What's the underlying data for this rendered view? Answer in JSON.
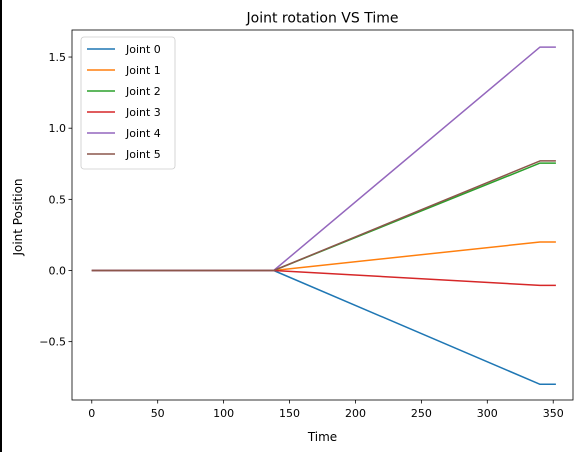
{
  "chart_data": {
    "type": "line",
    "title": "Joint rotation VS Time",
    "xlabel": "Time",
    "ylabel": "Joint Position",
    "xlim": [
      -15,
      365
    ],
    "ylim": [
      -0.91,
      1.69
    ],
    "xticks": [
      0,
      50,
      100,
      150,
      200,
      250,
      300,
      350
    ],
    "yticks": [
      -0.5,
      0.0,
      0.5,
      1.0,
      1.5
    ],
    "xtick_labels": [
      "0",
      "50",
      "100",
      "150",
      "200",
      "250",
      "300",
      "350"
    ],
    "ytick_labels": [
      "−0.5",
      "0.0",
      "0.5",
      "1.0",
      "1.5"
    ],
    "grid": false,
    "legend_position": "top-left",
    "series": [
      {
        "name": "Joint 0",
        "color": "#1f77b4",
        "x": [
          0,
          138,
          340,
          352
        ],
        "y": [
          0.0,
          0.0,
          -0.8,
          -0.8
        ]
      },
      {
        "name": "Joint 1",
        "color": "#ff7f0e",
        "x": [
          0,
          138,
          340,
          352
        ],
        "y": [
          0.0,
          0.0,
          0.2,
          0.2
        ]
      },
      {
        "name": "Joint 2",
        "color": "#2ca02c",
        "x": [
          0,
          138,
          340,
          352
        ],
        "y": [
          0.0,
          0.0,
          0.755,
          0.755
        ]
      },
      {
        "name": "Joint 3",
        "color": "#d62728",
        "x": [
          0,
          138,
          340,
          352
        ],
        "y": [
          0.0,
          0.0,
          -0.105,
          -0.105
        ]
      },
      {
        "name": "Joint 4",
        "color": "#9467bd",
        "x": [
          0,
          138,
          340,
          352
        ],
        "y": [
          0.0,
          0.0,
          1.57,
          1.57
        ]
      },
      {
        "name": "Joint 5",
        "color": "#8c564b",
        "x": [
          0,
          138,
          340,
          352
        ],
        "y": [
          0.0,
          0.0,
          0.77,
          0.77
        ]
      }
    ]
  }
}
